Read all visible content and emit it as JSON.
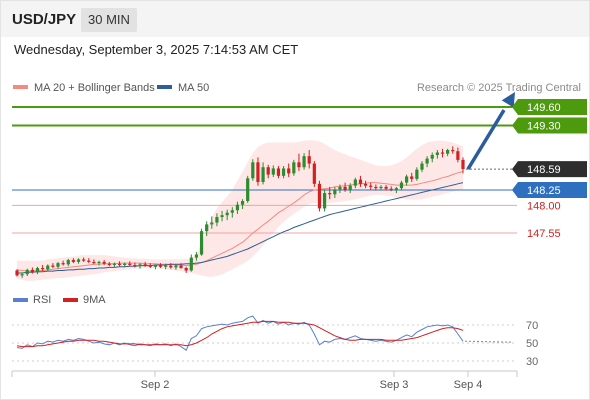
{
  "header": {
    "symbol": "USD/JPY",
    "timeframe": "30 MIN",
    "datetime": "Wednesday, September 3, 2025 7:14:53 AM CET"
  },
  "legend": {
    "items": [
      {
        "label": "MA 20 + Bollinger Bands",
        "color": "#f28b82"
      },
      {
        "label": "MA 50",
        "color": "#2f5d9a"
      }
    ],
    "credit": "Research © 2025 Trading Central"
  },
  "colors": {
    "up_candle": "#2e8b2e",
    "down_candle": "#d32020",
    "target_line": "#4d9a0f",
    "support_line": "#f4a3a3",
    "pivot_line": "#2f6fbf",
    "bollinger_fill": "#fde3e3",
    "arrow": "#2b5c9c",
    "rsi_line": "#5b7fd0",
    "rsi_ma_line": "#d32020"
  },
  "chart_data": [
    {
      "type": "candlestick",
      "title": "USD/JPY 30 MIN",
      "x_ticks": [
        "Sep 2",
        "Sep 3",
        "Sep 4"
      ],
      "ylim": [
        146.8,
        149.75
      ],
      "last_price": 148.59,
      "levels": [
        {
          "label": "149.60",
          "value": 149.6,
          "kind": "target"
        },
        {
          "label": "149.30",
          "value": 149.3,
          "kind": "target"
        },
        {
          "label": "148.59",
          "value": 148.59,
          "kind": "last"
        },
        {
          "label": "148.25",
          "value": 148.25,
          "kind": "pivot"
        },
        {
          "label": "148.00",
          "value": 148.0,
          "kind": "support"
        },
        {
          "label": "147.55",
          "value": 147.55,
          "kind": "support"
        }
      ],
      "candles": [
        [
          146.94,
          146.96,
          146.84,
          146.86
        ],
        [
          146.86,
          146.91,
          146.82,
          146.88
        ],
        [
          146.88,
          146.97,
          146.85,
          146.95
        ],
        [
          146.95,
          146.99,
          146.89,
          146.91
        ],
        [
          146.91,
          147.0,
          146.88,
          146.98
        ],
        [
          146.98,
          147.03,
          146.93,
          146.96
        ],
        [
          146.96,
          147.04,
          146.94,
          147.02
        ],
        [
          147.02,
          147.06,
          146.98,
          147.0
        ],
        [
          147.0,
          147.08,
          146.97,
          147.06
        ],
        [
          147.06,
          147.1,
          147.02,
          147.04
        ],
        [
          147.04,
          147.13,
          147.01,
          147.11
        ],
        [
          147.11,
          147.14,
          147.06,
          147.08
        ],
        [
          147.08,
          147.14,
          147.05,
          147.12
        ],
        [
          147.12,
          147.15,
          147.08,
          147.1
        ],
        [
          147.1,
          147.14,
          147.06,
          147.08
        ],
        [
          147.08,
          147.12,
          147.04,
          147.06
        ],
        [
          147.06,
          147.1,
          147.02,
          147.08
        ],
        [
          147.08,
          147.11,
          147.03,
          147.05
        ],
        [
          147.05,
          147.08,
          147.01,
          147.03
        ],
        [
          147.03,
          147.07,
          146.99,
          147.05
        ],
        [
          147.05,
          147.09,
          147.01,
          147.03
        ],
        [
          147.03,
          147.07,
          146.99,
          147.05
        ],
        [
          147.05,
          147.09,
          147.01,
          147.03
        ],
        [
          147.03,
          147.07,
          146.99,
          147.01
        ],
        [
          147.01,
          147.06,
          146.97,
          147.04
        ],
        [
          147.04,
          147.08,
          147.0,
          147.02
        ],
        [
          147.02,
          147.06,
          146.98,
          147.0
        ],
        [
          147.0,
          147.04,
          146.96,
          147.02
        ],
        [
          147.02,
          147.06,
          146.98,
          147.0
        ],
        [
          147.0,
          147.05,
          146.96,
          147.02
        ],
        [
          147.02,
          147.06,
          146.97,
          146.99
        ],
        [
          146.99,
          147.04,
          146.95,
          147.02
        ],
        [
          147.02,
          147.06,
          146.97,
          146.98
        ],
        [
          146.98,
          147.0,
          146.9,
          146.94
        ],
        [
          146.94,
          147.2,
          146.92,
          147.15
        ],
        [
          147.15,
          147.24,
          147.1,
          147.2
        ],
        [
          147.2,
          147.62,
          147.18,
          147.58
        ],
        [
          147.58,
          147.74,
          147.5,
          147.69
        ],
        [
          147.69,
          147.82,
          147.62,
          147.72
        ],
        [
          147.72,
          147.87,
          147.66,
          147.81
        ],
        [
          147.81,
          147.91,
          147.74,
          147.84
        ],
        [
          147.84,
          147.93,
          147.76,
          147.88
        ],
        [
          147.88,
          147.97,
          147.8,
          147.92
        ],
        [
          147.92,
          148.06,
          147.86,
          148.01
        ],
        [
          148.01,
          148.1,
          147.94,
          148.07
        ],
        [
          148.07,
          148.48,
          148.04,
          148.44
        ],
        [
          148.44,
          148.75,
          148.4,
          148.7
        ],
        [
          148.7,
          148.78,
          148.32,
          148.38
        ],
        [
          148.38,
          148.7,
          148.34,
          148.62
        ],
        [
          148.62,
          148.66,
          148.44,
          148.5
        ],
        [
          148.5,
          148.65,
          148.46,
          148.6
        ],
        [
          148.6,
          148.64,
          148.44,
          148.48
        ],
        [
          148.48,
          148.64,
          148.44,
          148.6
        ],
        [
          148.6,
          148.68,
          148.46,
          148.52
        ],
        [
          148.52,
          148.74,
          148.48,
          148.7
        ],
        [
          148.7,
          148.84,
          148.56,
          148.62
        ],
        [
          148.62,
          148.85,
          148.58,
          148.8
        ],
        [
          148.8,
          148.9,
          148.6,
          148.68
        ],
        [
          148.68,
          148.72,
          148.3,
          148.35
        ],
        [
          148.35,
          148.4,
          147.9,
          147.95
        ],
        [
          147.95,
          148.25,
          147.9,
          148.2
        ],
        [
          148.2,
          148.3,
          148.1,
          148.18
        ],
        [
          148.18,
          148.3,
          148.12,
          148.26
        ],
        [
          148.26,
          148.34,
          148.2,
          148.3
        ],
        [
          148.3,
          148.37,
          148.22,
          148.25
        ],
        [
          148.25,
          148.36,
          148.2,
          148.32
        ],
        [
          148.32,
          148.45,
          148.28,
          148.42
        ],
        [
          148.42,
          148.48,
          148.3,
          148.35
        ],
        [
          148.35,
          148.4,
          148.28,
          148.32
        ],
        [
          148.32,
          148.37,
          148.25,
          148.3
        ],
        [
          148.3,
          148.34,
          148.24,
          148.28
        ],
        [
          148.28,
          148.33,
          148.24,
          148.3
        ],
        [
          148.3,
          148.33,
          148.24,
          148.27
        ],
        [
          148.27,
          148.31,
          148.23,
          148.25
        ],
        [
          148.25,
          148.3,
          148.2,
          148.28
        ],
        [
          148.28,
          148.4,
          148.24,
          148.37
        ],
        [
          148.37,
          148.5,
          148.32,
          148.47
        ],
        [
          148.47,
          148.53,
          148.38,
          148.43
        ],
        [
          148.43,
          148.62,
          148.4,
          148.58
        ],
        [
          148.58,
          148.72,
          148.54,
          148.68
        ],
        [
          148.68,
          148.8,
          148.62,
          148.76
        ],
        [
          148.76,
          148.86,
          148.7,
          148.82
        ],
        [
          148.82,
          148.9,
          148.76,
          148.86
        ],
        [
          148.86,
          148.92,
          148.78,
          148.84
        ],
        [
          148.84,
          148.92,
          148.8,
          148.9
        ],
        [
          148.9,
          148.96,
          148.84,
          148.88
        ],
        [
          148.88,
          148.94,
          148.7,
          148.74
        ],
        [
          148.74,
          148.78,
          148.52,
          148.59
        ]
      ],
      "ma20": [
        146.95,
        146.94,
        146.93,
        146.93,
        146.94,
        146.94,
        146.95,
        146.96,
        146.97,
        146.98,
        146.99,
        147.0,
        147.01,
        147.02,
        147.03,
        147.04,
        147.04,
        147.05,
        147.05,
        147.05,
        147.06,
        147.06,
        147.06,
        147.06,
        147.06,
        147.05,
        147.05,
        147.05,
        147.04,
        147.04,
        147.04,
        147.03,
        147.03,
        147.02,
        147.03,
        147.04,
        147.07,
        147.1,
        147.14,
        147.18,
        147.22,
        147.26,
        147.3,
        147.35,
        147.4,
        147.47,
        147.55,
        147.61,
        147.68,
        147.74,
        147.81,
        147.88,
        147.93,
        147.99,
        148.04,
        148.1,
        148.17,
        148.22,
        148.25,
        148.26,
        148.27,
        148.28,
        148.3,
        148.31,
        148.32,
        148.33,
        148.34,
        148.35,
        148.36,
        148.37,
        148.37,
        148.36,
        148.35,
        148.34,
        148.33,
        148.33,
        148.33,
        148.33,
        148.34,
        148.36,
        148.38,
        148.4,
        148.42,
        148.45,
        148.47,
        148.5,
        148.53,
        148.55
      ],
      "bollinger_upper": [
        147.1,
        147.1,
        147.1,
        147.1,
        147.1,
        147.1,
        147.12,
        147.13,
        147.14,
        147.15,
        147.16,
        147.17,
        147.18,
        147.19,
        147.19,
        147.19,
        147.19,
        147.19,
        147.18,
        147.17,
        147.16,
        147.15,
        147.14,
        147.14,
        147.13,
        147.13,
        147.12,
        147.12,
        147.12,
        147.12,
        147.12,
        147.12,
        147.12,
        147.12,
        147.13,
        147.2,
        147.4,
        147.6,
        147.8,
        147.95,
        148.05,
        148.15,
        148.25,
        148.4,
        148.55,
        148.7,
        148.85,
        148.95,
        149.0,
        149.02,
        149.02,
        149.02,
        149.02,
        149.02,
        149.02,
        149.03,
        149.05,
        149.06,
        149.06,
        149.04,
        149.0,
        148.95,
        148.9,
        148.86,
        148.83,
        148.8,
        148.77,
        148.74,
        148.71,
        148.68,
        148.65,
        148.64,
        148.64,
        148.65,
        148.68,
        148.72,
        148.78,
        148.85,
        148.92,
        148.98,
        149.02,
        149.04,
        149.05,
        149.05,
        149.04,
        149.02,
        148.99,
        148.96
      ],
      "bollinger_lower": [
        146.8,
        146.79,
        146.77,
        146.77,
        146.78,
        146.79,
        146.8,
        146.81,
        146.82,
        146.82,
        146.83,
        146.84,
        146.85,
        146.86,
        146.87,
        146.88,
        146.89,
        146.91,
        146.92,
        146.93,
        146.94,
        146.95,
        146.96,
        146.97,
        146.97,
        146.98,
        146.98,
        146.98,
        146.97,
        146.96,
        146.95,
        146.94,
        146.93,
        146.91,
        146.9,
        146.88,
        146.86,
        146.84,
        146.84,
        146.85,
        146.88,
        146.92,
        146.96,
        147.0,
        147.05,
        147.1,
        147.17,
        147.25,
        147.35,
        147.45,
        147.55,
        147.65,
        147.73,
        147.8,
        147.86,
        147.92,
        147.98,
        148.02,
        148.04,
        148.04,
        148.04,
        148.04,
        148.05,
        148.06,
        148.07,
        148.08,
        148.1,
        148.12,
        148.14,
        148.16,
        148.17,
        148.17,
        148.16,
        148.15,
        148.13,
        148.11,
        148.1,
        148.09,
        148.09,
        148.1,
        148.12,
        148.14,
        148.16,
        148.18,
        148.2,
        148.22,
        148.24,
        148.26
      ],
      "ma50": [
        146.9,
        146.9,
        146.91,
        146.91,
        146.92,
        146.92,
        146.93,
        146.93,
        146.94,
        146.94,
        146.95,
        146.95,
        146.96,
        146.96,
        146.97,
        146.97,
        146.98,
        146.98,
        146.99,
        146.99,
        147.0,
        147.0,
        147.01,
        147.01,
        147.02,
        147.02,
        147.02,
        147.03,
        147.03,
        147.03,
        147.04,
        147.04,
        147.04,
        147.05,
        147.05,
        147.06,
        147.07,
        147.09,
        147.11,
        147.13,
        147.15,
        147.17,
        147.2,
        147.23,
        147.26,
        147.29,
        147.33,
        147.37,
        147.41,
        147.45,
        147.49,
        147.53,
        147.57,
        147.6,
        147.64,
        147.67,
        147.7,
        147.73,
        147.76,
        147.79,
        147.82,
        147.85,
        147.87,
        147.89,
        147.91,
        147.93,
        147.95,
        147.97,
        147.99,
        148.01,
        148.03,
        148.05,
        148.07,
        148.09,
        148.11,
        148.13,
        148.15,
        148.17,
        148.19,
        148.21,
        148.23,
        148.25,
        148.27,
        148.29,
        148.31,
        148.33,
        148.35,
        148.37
      ]
    },
    {
      "type": "line",
      "title": "RSI",
      "series_names": [
        "RSI",
        "9MA"
      ],
      "y_ticks": [
        70,
        50,
        30
      ],
      "ylim": [
        20,
        85
      ],
      "rsi": [
        45,
        44,
        48,
        46,
        50,
        49,
        52,
        51,
        53,
        52,
        54,
        53,
        55,
        54,
        52,
        50,
        51,
        49,
        48,
        50,
        48,
        50,
        48,
        47,
        49,
        48,
        47,
        49,
        48,
        49,
        47,
        49,
        46,
        42,
        55,
        58,
        66,
        68,
        69,
        70,
        71,
        70,
        72,
        73,
        74,
        78,
        80,
        72,
        75,
        72,
        74,
        71,
        73,
        70,
        72,
        71,
        73,
        70,
        60,
        48,
        52,
        51,
        54,
        55,
        54,
        56,
        58,
        55,
        54,
        53,
        52,
        53,
        52,
        51,
        53,
        56,
        59,
        57,
        62,
        65,
        68,
        69,
        70,
        69,
        70,
        68,
        60,
        52
      ],
      "rsi_ma": [
        47,
        46,
        46,
        46,
        47,
        47,
        48,
        49,
        50,
        51,
        52,
        52,
        53,
        53,
        53,
        53,
        52,
        52,
        51,
        50,
        49,
        49,
        49,
        49,
        48,
        48,
        48,
        48,
        48,
        48,
        48,
        48,
        48,
        47,
        48,
        50,
        53,
        56,
        60,
        63,
        66,
        68,
        69,
        70,
        71,
        72,
        73,
        73,
        74,
        74,
        74,
        73,
        73,
        73,
        72,
        72,
        72,
        71,
        70,
        67,
        64,
        61,
        58,
        56,
        54,
        53,
        53,
        54,
        54,
        54,
        54,
        54,
        53,
        53,
        53,
        53,
        54,
        55,
        56,
        58,
        60,
        62,
        64,
        66,
        67,
        67,
        66,
        64
      ]
    }
  ]
}
